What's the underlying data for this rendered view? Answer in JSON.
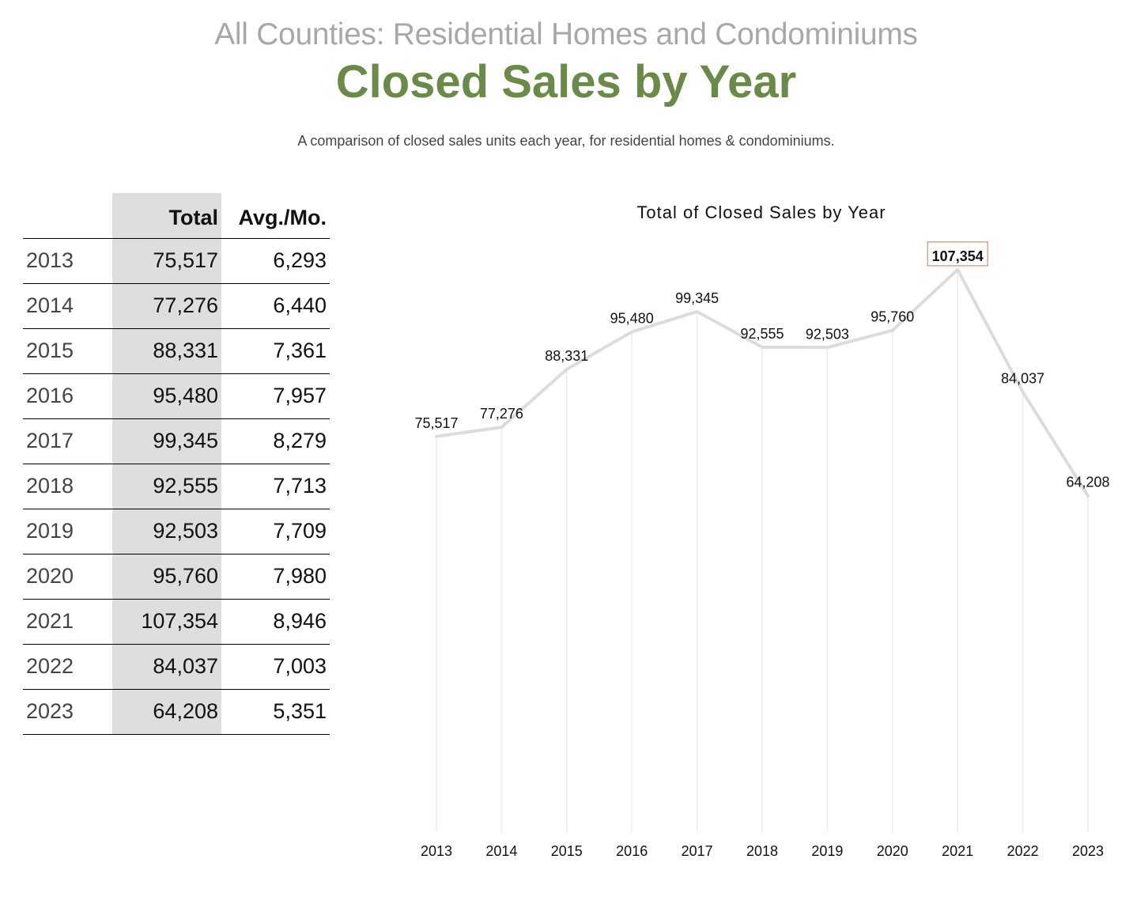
{
  "header": {
    "supertitle": "All Counties: Residential Homes and Condominiums",
    "title": "Closed Sales by Year",
    "subtitle": "A comparison of closed sales units each year, for residential homes & condominiums."
  },
  "table": {
    "columns": [
      "",
      "Total",
      "Avg./Mo."
    ],
    "rows": [
      {
        "year": "2013",
        "total": "75,517",
        "avg": "6,293"
      },
      {
        "year": "2014",
        "total": "77,276",
        "avg": "6,440"
      },
      {
        "year": "2015",
        "total": "88,331",
        "avg": "7,361"
      },
      {
        "year": "2016",
        "total": "95,480",
        "avg": "7,957"
      },
      {
        "year": "2017",
        "total": "99,345",
        "avg": "8,279"
      },
      {
        "year": "2018",
        "total": "92,555",
        "avg": "7,713"
      },
      {
        "year": "2019",
        "total": "92,503",
        "avg": "7,709"
      },
      {
        "year": "2020",
        "total": "95,760",
        "avg": "7,980"
      },
      {
        "year": "2021",
        "total": "107,354",
        "avg": "8,946"
      },
      {
        "year": "2022",
        "total": "84,037",
        "avg": "7,003"
      },
      {
        "year": "2023",
        "total": "64,208",
        "avg": "5,351"
      }
    ]
  },
  "chart_data": {
    "type": "line",
    "title": "Total of Closed Sales by Year",
    "xlabel": "",
    "ylabel": "",
    "categories": [
      "2013",
      "2014",
      "2015",
      "2016",
      "2017",
      "2018",
      "2019",
      "2020",
      "2021",
      "2022",
      "2023"
    ],
    "series": [
      {
        "name": "Total",
        "values": [
          75517,
          77276,
          88331,
          95480,
          99345,
          92555,
          92503,
          95760,
          107354,
          84037,
          64208
        ]
      }
    ],
    "data_labels": [
      "75,517",
      "77,276",
      "88,331",
      "95,480",
      "99,345",
      "92,555",
      "92,503",
      "95,760",
      "107,354",
      "84,037",
      "64,208"
    ],
    "highlight_index": 8,
    "ylim": [
      0,
      109000
    ],
    "grid": "vertical",
    "legend": "none",
    "colors": {
      "line": "#dcdcdc",
      "grid": "#ececec",
      "highlight_box": "#e08870"
    }
  }
}
